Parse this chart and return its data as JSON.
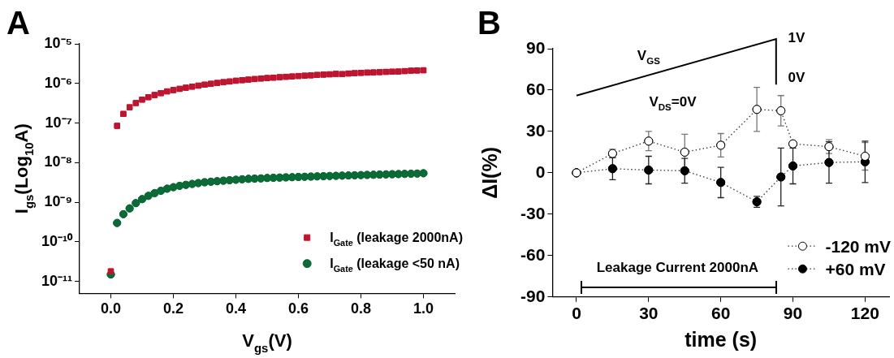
{
  "chart_data": [
    {
      "type": "scatter",
      "title": "A",
      "xlabel": "V$_{gs}$(V)",
      "ylabel": "I$_{gs}$(Log$_{10}$A)",
      "log": "y",
      "legend": "bottom right",
      "xlim": [
        -0.1,
        1.1
      ],
      "xticks": [
        {
          "value": 0,
          "label": "0.0"
        },
        0.2,
        0.4,
        0.6,
        0.8,
        {
          "value": 1,
          "label": "1.0"
        }
      ],
      "ylim": [
        5e-12,
        1e-05
      ],
      "yticks": [
        {
          "value": 1e-11,
          "label": "10⁻¹¹"
        },
        {
          "value": 1e-10,
          "label": "10⁻¹⁰"
        },
        {
          "value": 1e-09,
          "label": "10⁻⁹"
        },
        {
          "value": 1e-08,
          "label": "10⁻⁸"
        },
        {
          "value": 1e-07,
          "label": "10⁻⁷"
        },
        {
          "value": 1e-06,
          "label": "10⁻⁶"
        },
        {
          "value": 1e-05,
          "label": "10⁻⁵"
        }
      ],
      "x": [
        0,
        0.02,
        0.04,
        0.06,
        0.08,
        0.1,
        0.12,
        0.14,
        0.16,
        0.18,
        0.2,
        0.22,
        0.24,
        0.26,
        0.28,
        0.3,
        0.32,
        0.34,
        0.36,
        0.38,
        0.4,
        0.42,
        0.44,
        0.46,
        0.48,
        0.5,
        0.52,
        0.54,
        0.56,
        0.58,
        0.6,
        0.62,
        0.64,
        0.66,
        0.68,
        0.7,
        0.72,
        0.74,
        0.76,
        0.78,
        0.8,
        0.82,
        0.84,
        0.86,
        0.88,
        0.9,
        0.92,
        0.94,
        0.96,
        0.98,
        1
      ],
      "series": [
        {
          "name": "I$_{Gate}$ (leakage 2000nA)",
          "color": "#be1530",
          "marker": "square",
          "values": [
            1.8e-11,
            8.5e-08,
            1.7e-07,
            2.5e-07,
            3.2e-07,
            3.9e-07,
            4.5e-07,
            5.1e-07,
            5.7e-07,
            6.3e-07,
            6.8e-07,
            7.3e-07,
            7.8e-07,
            8.3e-07,
            8.8e-07,
            9.3e-07,
            9.8e-07,
            1.03e-06,
            1.08e-06,
            1.12e-06,
            1.17e-06,
            1.21e-06,
            1.25e-06,
            1.29e-06,
            1.33e-06,
            1.37e-06,
            1.4e-06,
            1.44e-06,
            1.47e-06,
            1.5e-06,
            1.54e-06,
            1.57e-06,
            1.6e-06,
            1.64e-06,
            1.67e-06,
            1.7e-06,
            1.74e-06,
            1.72e-06,
            1.78e-06,
            1.82e-06,
            1.85e-06,
            1.88e-06,
            1.9e-06,
            1.93e-06,
            1.96e-06,
            1.98e-06,
            2e-06,
            2.05e-06,
            2.1e-06,
            2.12e-06,
            2.15e-06
          ]
        },
        {
          "name": "I$_{Gate}$ (leakage <50 nA)",
          "color": "#0b6a35",
          "marker": "circle",
          "values": [
            1.5e-11,
            3e-10,
            5e-10,
            7e-10,
            9.5e-10,
            1.2e-09,
            1.45e-09,
            1.7e-09,
            1.95e-09,
            2.2e-09,
            2.4e-09,
            2.6e-09,
            2.75e-09,
            2.9e-09,
            3.05e-09,
            3.2e-09,
            3.3e-09,
            3.4e-09,
            3.5e-09,
            3.6e-09,
            3.7e-09,
            3.8e-09,
            3.9e-09,
            3.95e-09,
            4e-09,
            4.1e-09,
            4.15e-09,
            4.2e-09,
            4.25e-09,
            4.3e-09,
            4.35e-09,
            4.4e-09,
            4.45e-09,
            4.5e-09,
            4.55e-09,
            4.6e-09,
            4.65e-09,
            4.7e-09,
            4.75e-09,
            4.8e-09,
            4.85e-09,
            4.9e-09,
            4.95e-09,
            5e-09,
            5.05e-09,
            5.1e-09,
            5.15e-09,
            5.2e-09,
            5.25e-09,
            5.3e-09,
            5.4e-09
          ]
        }
      ]
    },
    {
      "type": "line",
      "title": "B",
      "xlabel": "time (s)",
      "ylabel": "ΔI(%)",
      "legend": "bottom right",
      "line_style": "dotted",
      "marker": "circle",
      "xlim": [
        -10,
        130
      ],
      "xticks": [
        0,
        30,
        60,
        90,
        120
      ],
      "ylim": [
        -90,
        90
      ],
      "yticks": [
        -90,
        -60,
        -30,
        0,
        30,
        60,
        90
      ],
      "x": [
        0,
        15,
        30,
        45,
        60,
        75,
        85,
        90,
        105,
        120
      ],
      "annotations": [
        "V$_{GS}$",
        "1V",
        "0V",
        "V$_{DS}$=0V",
        "Leakage Current 2000nA"
      ],
      "series": [
        {
          "name": "-120 mV",
          "color": "#ffffff",
          "values": [
            0,
            14,
            23,
            15,
            20,
            46,
            45,
            21,
            19,
            12
          ],
          "errors": [
            null,
            3,
            7,
            13,
            8.5,
            16,
            11,
            null,
            5,
            10
          ]
        },
        {
          "name": "+60 mV",
          "color": "#000000",
          "values": [
            0,
            3,
            2,
            1.5,
            -7,
            -21,
            -3,
            5,
            7.5,
            8
          ],
          "errors": [
            null,
            8,
            10,
            9,
            11,
            4,
            21,
            13,
            15,
            15
          ]
        }
      ]
    }
  ]
}
